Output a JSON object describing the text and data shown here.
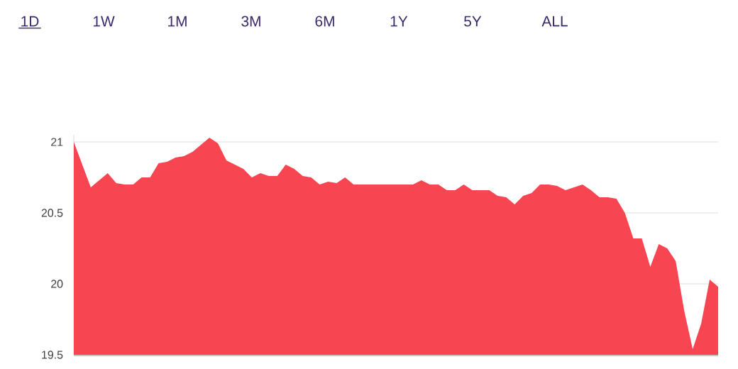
{
  "chart_data": {
    "type": "area",
    "color": "#f74552",
    "categories": [
      null,
      null,
      null,
      null,
      null,
      null,
      null,
      null,
      null,
      null,
      null,
      null,
      null,
      null,
      null,
      null,
      null,
      null,
      null,
      null,
      null,
      null,
      null,
      null,
      null,
      null,
      null,
      null,
      null,
      null,
      null,
      null,
      null,
      null,
      null,
      null,
      null,
      null,
      null,
      null,
      null,
      null,
      null,
      null,
      null,
      null,
      null,
      null,
      null,
      null,
      null,
      null,
      null,
      null,
      null,
      null,
      null,
      null,
      null,
      null,
      null,
      null,
      null,
      null,
      null,
      null,
      null,
      null,
      null,
      null,
      null,
      null,
      null,
      null,
      null,
      null,
      null
    ],
    "values": [
      21.0,
      20.84,
      20.68,
      20.73,
      20.78,
      20.71,
      20.7,
      20.7,
      20.75,
      20.75,
      20.85,
      20.86,
      20.89,
      20.9,
      20.93,
      20.98,
      21.03,
      20.99,
      20.87,
      20.84,
      20.81,
      20.75,
      20.78,
      20.76,
      20.76,
      20.84,
      20.81,
      20.76,
      20.75,
      20.7,
      20.72,
      20.71,
      20.75,
      20.7,
      20.7,
      20.7,
      20.7,
      20.7,
      20.7,
      20.7,
      20.7,
      20.73,
      20.7,
      20.7,
      20.66,
      20.66,
      20.7,
      20.66,
      20.66,
      20.66,
      20.62,
      20.61,
      20.56,
      20.62,
      20.64,
      20.7,
      20.7,
      20.69,
      20.66,
      20.68,
      20.7,
      20.66,
      20.61,
      20.61,
      20.6,
      20.5,
      20.32,
      20.32,
      20.12,
      20.28,
      20.25,
      20.16,
      19.81,
      19.54,
      19.72,
      20.03,
      19.98
    ],
    "ylim": [
      19.5,
      21.05
    ],
    "yticks": [
      19.5,
      20,
      20.5,
      21
    ],
    "grid": "y",
    "annotations": [
      "1D",
      "1W",
      "1M",
      "3M",
      "6M",
      "1Y",
      "5Y",
      "ALL"
    ]
  }
}
